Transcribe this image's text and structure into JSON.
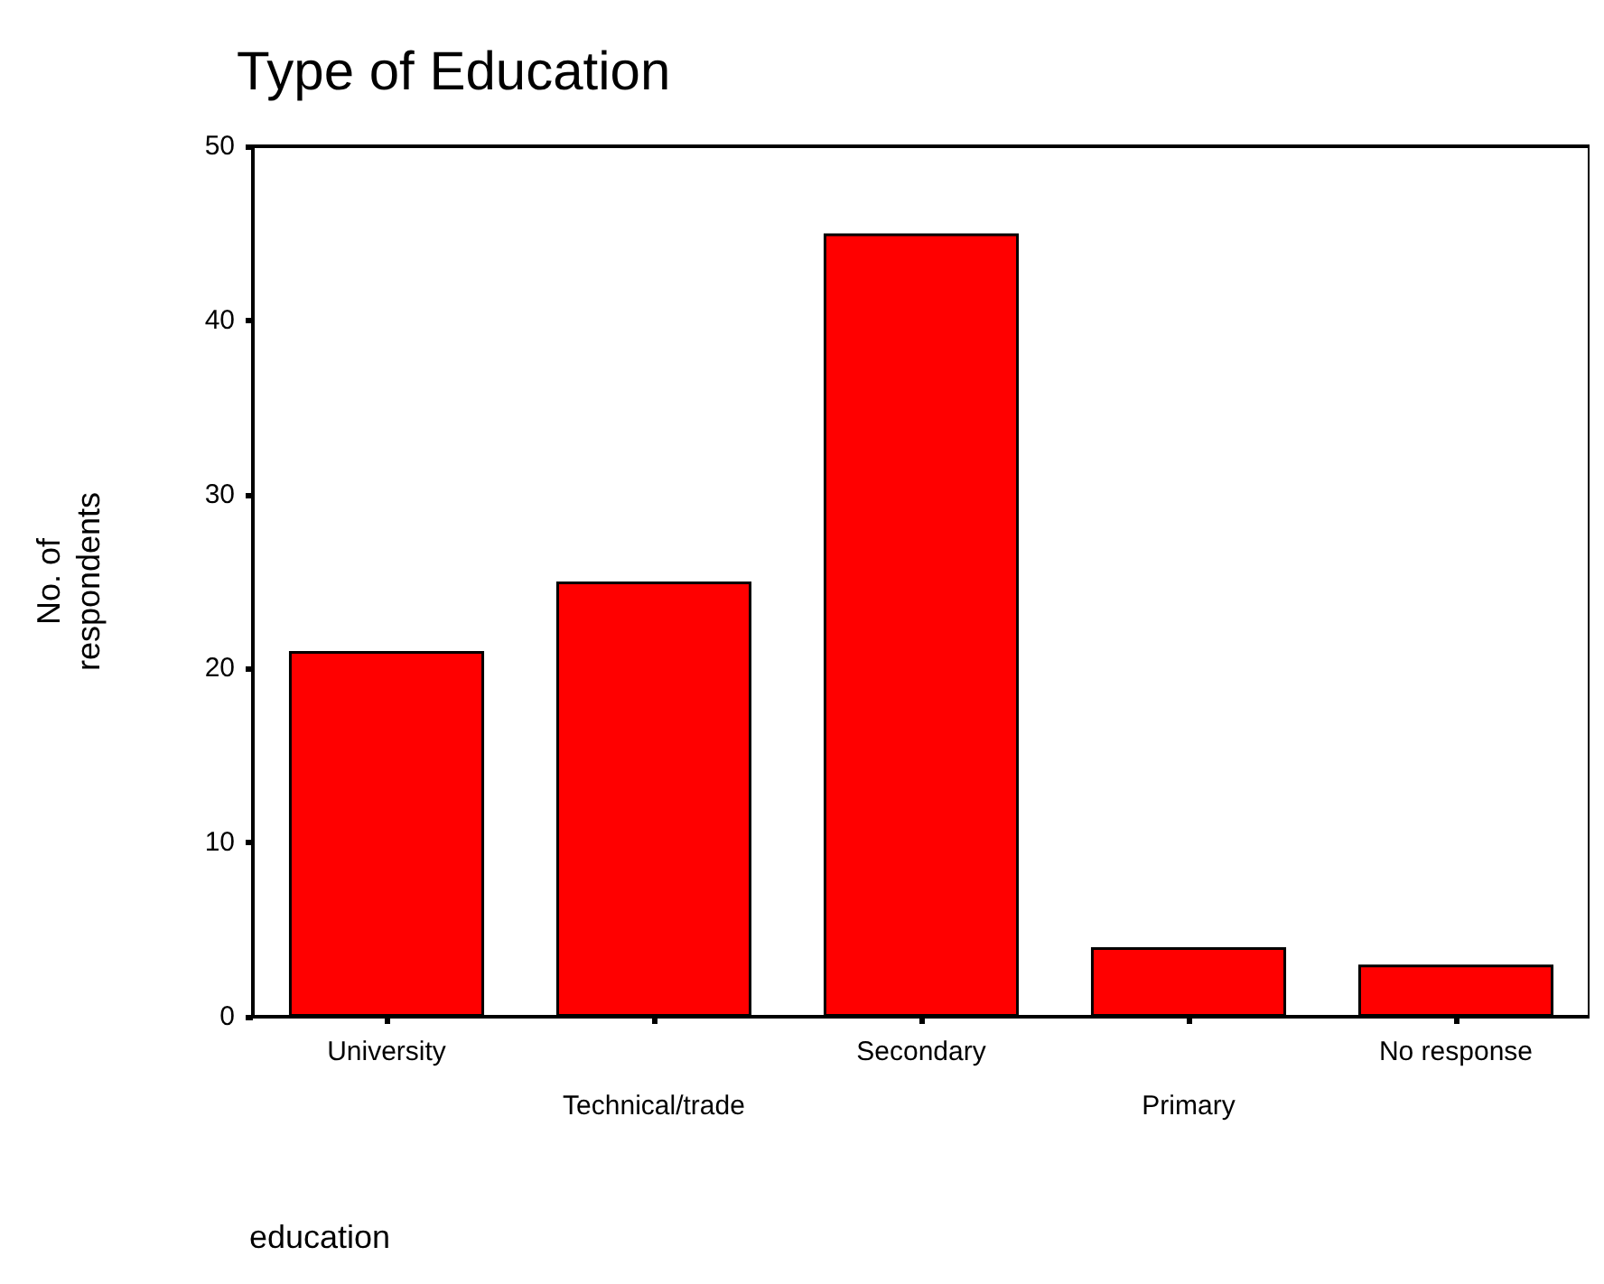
{
  "chart_data": {
    "type": "bar",
    "title": "Type of Education",
    "xlabel": "education",
    "ylabel": "No. of\nrespondents",
    "categories": [
      "University",
      "Technical/trade",
      "Secondary",
      "Primary",
      "No response"
    ],
    "values": [
      21,
      25,
      45,
      4,
      3
    ],
    "color": "#ff0000",
    "ylim": [
      0,
      50
    ],
    "yticks": [
      0,
      10,
      20,
      30,
      40,
      50
    ],
    "grid": false
  }
}
